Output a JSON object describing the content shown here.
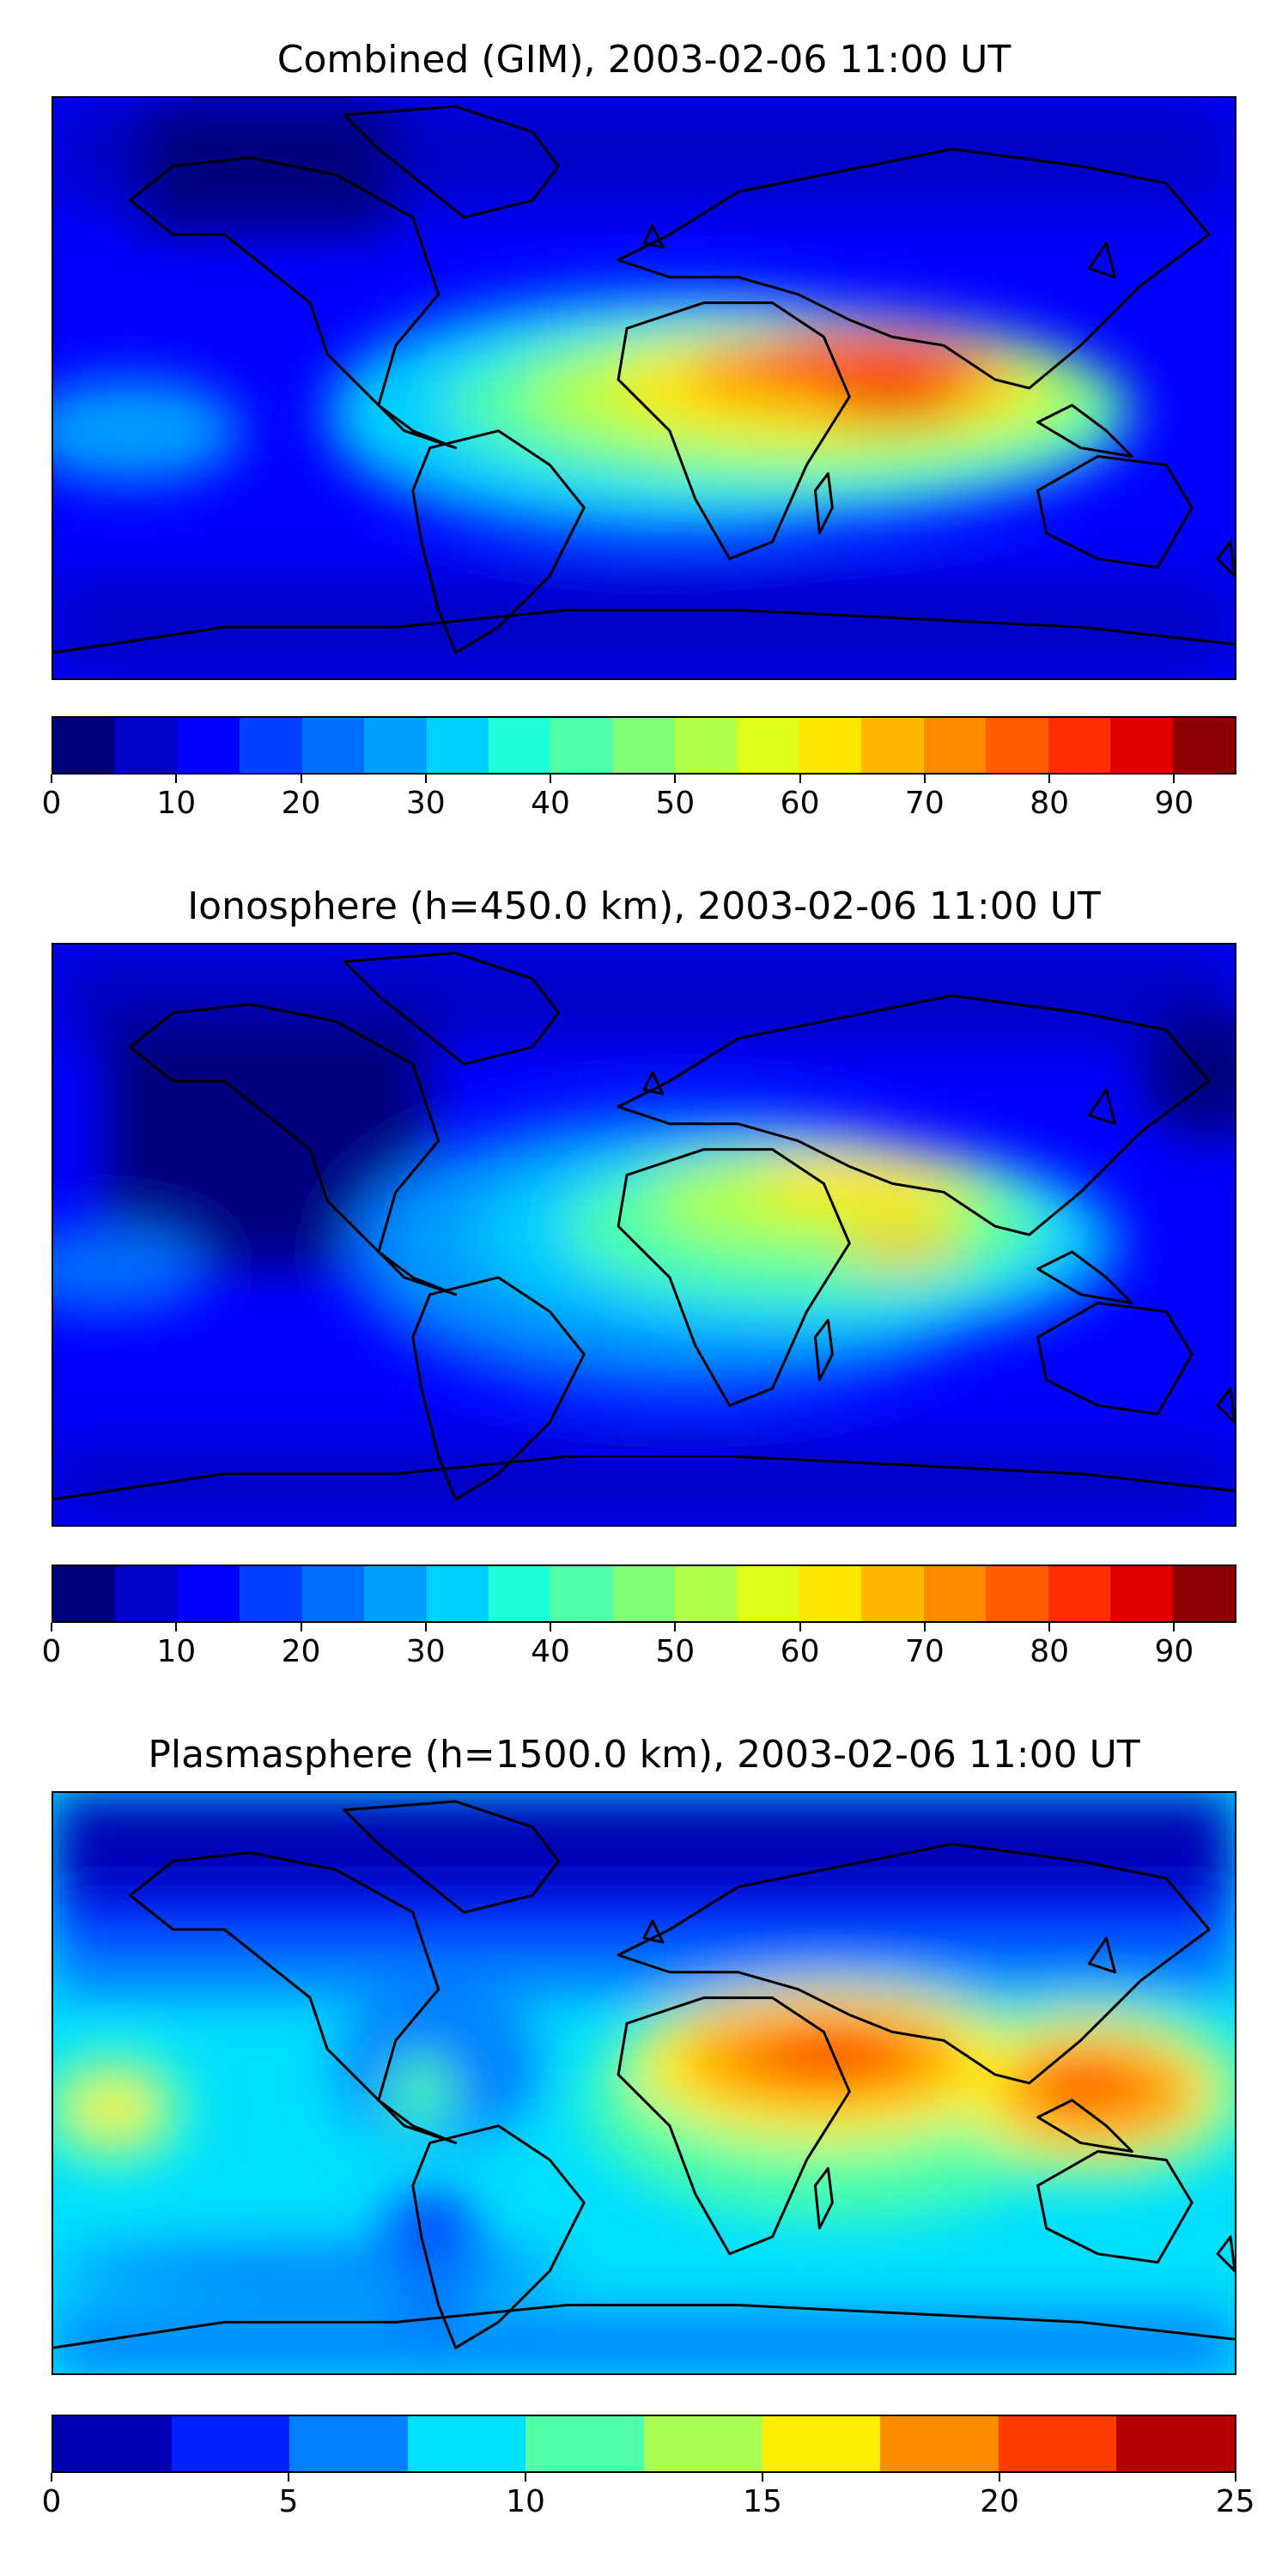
{
  "panels": [
    {
      "title": "Combined (GIM), 2003-02-06 11:00 UT",
      "colorbar": {
        "colors": [
          "#00007f",
          "#0000c8",
          "#0000ff",
          "#0040ff",
          "#0070ff",
          "#00a0ff",
          "#00d0ff",
          "#20ffd8",
          "#50ffa8",
          "#80ff78",
          "#b0ff48",
          "#dfff18",
          "#ffe600",
          "#ffb800",
          "#ff8a00",
          "#ff5c00",
          "#ff2e00",
          "#e00000",
          "#8f0000"
        ],
        "ticks": [
          "0",
          "10",
          "20",
          "30",
          "40",
          "50",
          "60",
          "70",
          "80",
          "90"
        ],
        "tick_values": [
          0,
          10,
          20,
          30,
          40,
          50,
          60,
          70,
          80,
          90
        ],
        "range": [
          0,
          95
        ]
      }
    },
    {
      "title": "Ionosphere  (h=450.0 km), 2003-02-06 11:00 UT",
      "colorbar": {
        "colors": [
          "#00007f",
          "#0000c8",
          "#0000ff",
          "#0040ff",
          "#0070ff",
          "#00a0ff",
          "#00d0ff",
          "#20ffd8",
          "#50ffa8",
          "#80ff78",
          "#b0ff48",
          "#dfff18",
          "#ffe600",
          "#ffb800",
          "#ff8a00",
          "#ff5c00",
          "#ff2e00",
          "#e00000",
          "#8f0000"
        ],
        "ticks": [
          "0",
          "10",
          "20",
          "30",
          "40",
          "50",
          "60",
          "70",
          "80",
          "90"
        ],
        "tick_values": [
          0,
          10,
          20,
          30,
          40,
          50,
          60,
          70,
          80,
          90
        ],
        "range": [
          0,
          95
        ]
      }
    },
    {
      "title": "Plasmasphere (h=1500.0 km), 2003-02-06 11:00 UT",
      "colorbar": {
        "colors": [
          "#0000b4",
          "#0020ff",
          "#0080ff",
          "#00e0ff",
          "#50ffa8",
          "#a8ff50",
          "#ffee00",
          "#ff8c00",
          "#ff3c00",
          "#b40000"
        ],
        "ticks": [
          "0",
          "5",
          "10",
          "15",
          "20",
          "25"
        ],
        "tick_values": [
          0,
          5,
          10,
          15,
          20,
          25
        ],
        "range": [
          0,
          25
        ]
      }
    }
  ],
  "map_style": {
    "coastline_color": "#000000",
    "continents": [
      "north-america",
      "greenland",
      "south-america",
      "europe-asia",
      "africa",
      "australia",
      "antarctica",
      "madagascar",
      "japan",
      "indonesia",
      "new-zealand",
      "uk"
    ]
  }
}
